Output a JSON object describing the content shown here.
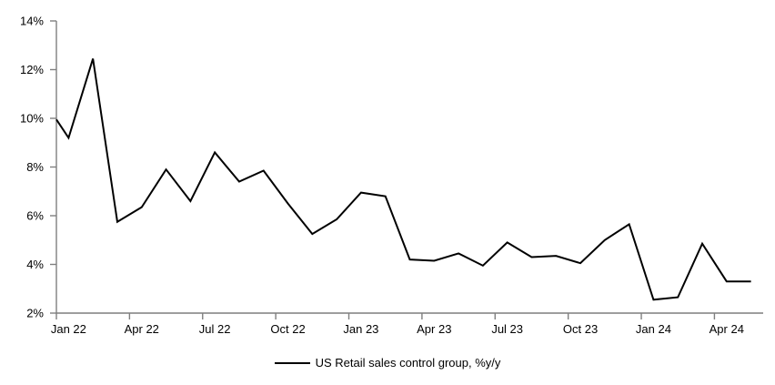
{
  "chart_data": {
    "type": "line",
    "title": "",
    "series_name": "US Retail sales control group, %y/y",
    "x": [
      "Jan 22",
      "Feb 22",
      "Mar 22",
      "Apr 22",
      "May 22",
      "Jun 22",
      "Jul 22",
      "Aug 22",
      "Sep 22",
      "Oct 22",
      "Nov 22",
      "Dec 22",
      "Jan 23",
      "Feb 23",
      "Mar 23",
      "Apr 23",
      "May 23",
      "Jun 23",
      "Jul 23",
      "Aug 23",
      "Sep 23",
      "Oct 23",
      "Nov 23",
      "Dec 23",
      "Jan 24",
      "Feb 24",
      "Mar 24",
      "Apr 24",
      "May 24"
    ],
    "values": [
      9.2,
      12.45,
      5.75,
      6.35,
      7.9,
      6.6,
      8.6,
      7.4,
      7.85,
      6.5,
      5.25,
      5.85,
      6.95,
      6.8,
      4.2,
      4.15,
      4.45,
      3.95,
      4.9,
      4.3,
      4.35,
      4.05,
      5.0,
      5.65,
      2.55,
      2.65,
      4.85,
      3.3,
      3.3
    ],
    "edge_start_value": 9.95,
    "ylim": [
      2,
      14
    ],
    "y_tick_labels": [
      "2%",
      "4%",
      "6%",
      "8%",
      "10%",
      "12%",
      "14%"
    ],
    "y_tick_values": [
      2,
      4,
      6,
      8,
      10,
      12,
      14
    ],
    "x_tick_labels": [
      "Jan 22",
      "Apr 22",
      "Jul 22",
      "Oct 22",
      "Jan 23",
      "Apr 23",
      "Jul 23",
      "Oct 23",
      "Jan 24",
      "Apr 24"
    ],
    "x_tick_month_indices": [
      0,
      3,
      6,
      9,
      12,
      15,
      18,
      21,
      24,
      27
    ],
    "grid": false,
    "legend_position": "bottom-center",
    "line_color": "#000000",
    "axis_color": "#7f7f7f",
    "background_color": "#ffffff"
  }
}
